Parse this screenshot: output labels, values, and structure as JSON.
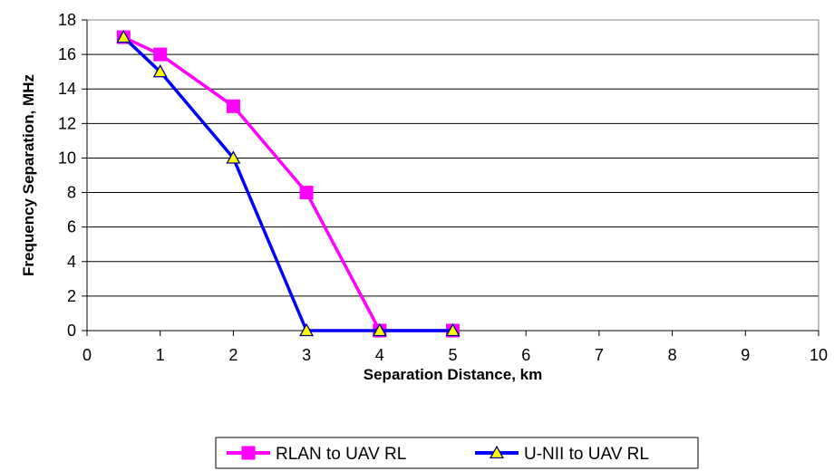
{
  "chart_data": {
    "type": "line",
    "xlabel": "Separation Distance, km",
    "ylabel": "Frequency Separation, MHz",
    "xlim": [
      0,
      10
    ],
    "ylim": [
      0,
      18
    ],
    "x_ticks": [
      0,
      1,
      2,
      3,
      4,
      5,
      6,
      7,
      8,
      9,
      10
    ],
    "y_ticks": [
      0,
      2,
      4,
      6,
      8,
      10,
      12,
      14,
      16,
      18
    ],
    "grid": "horizontal",
    "legend_position": "bottom",
    "series": [
      {
        "name": "RLAN to UAV RL",
        "color": "#ff00ff",
        "marker": "square",
        "marker_fill": "#ff00ff",
        "x": [
          0.5,
          1,
          2,
          3,
          4,
          5
        ],
        "y": [
          17,
          16,
          13,
          8,
          0,
          0
        ]
      },
      {
        "name": "U-NII to UAV RL",
        "color": "#0000ff",
        "marker": "triangle",
        "marker_fill": "#ffff00",
        "x": [
          0.5,
          1,
          2,
          3,
          4,
          5
        ],
        "y": [
          17,
          15,
          10,
          0,
          0,
          0
        ]
      }
    ]
  }
}
